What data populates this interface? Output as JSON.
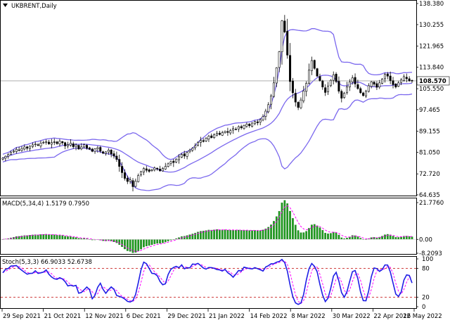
{
  "window": {
    "symbol_title": "UKBRENT,Daily",
    "arrow_icon": "triangle-down-icon"
  },
  "colors": {
    "bullish_body": "#ffffff",
    "bearish_body": "#000000",
    "candle_outline": "#000000",
    "bollinger": "#7b68ee",
    "macd_hist": "#1f9a1f",
    "macd_signal": "#ff00ff",
    "stoch_main": "#1e1ee6",
    "stoch_signal": "#ff00ff",
    "level_line": "#c00000",
    "grid": "#c8c8c8",
    "current_price_line": "#a0a0a0"
  },
  "chart_data": [
    {
      "type": "candlestick",
      "name": "price",
      "title": "UKBRENT,Daily",
      "ylim": [
        64.635,
        138.38
      ],
      "y_ticks": [
        "138.380",
        "130.255",
        "121.965",
        "113.840",
        "105.550",
        "97.465",
        "89.155",
        "81.050",
        "72.720",
        "64.635"
      ],
      "current_price": "108.570",
      "x_dates": [
        "29 Sep 2021",
        "21 Oct 2021",
        "12 Nov 2021",
        "6 Dec 2021",
        "29 Dec 2021",
        "21 Jan 2022",
        "14 Feb 2022",
        "8 Mar 2022",
        "30 Mar 2022",
        "22 Apr 2022",
        "16 May 2022"
      ],
      "close_series": [
        78.8,
        79.5,
        80.2,
        81.1,
        81.5,
        82.2,
        81.8,
        82.5,
        83.1,
        82.6,
        83.4,
        83.9,
        84.2,
        83.7,
        84.6,
        84.9,
        85.1,
        84.3,
        84.8,
        85.0,
        84.4,
        85.3,
        84.7,
        83.5,
        84.0,
        84.6,
        83.2,
        83.9,
        82.3,
        83.1,
        84.0,
        82.6,
        82.2,
        81.4,
        82.4,
        82.8,
        81.5,
        80.7,
        81.2,
        81.9,
        80.4,
        79.6,
        78.3,
        75.6,
        73.2,
        71.0,
        69.8,
        70.4,
        67.8,
        69.9,
        72.1,
        73.6,
        74.8,
        74.1,
        73.7,
        74.3,
        75.0,
        74.6,
        73.9,
        74.8,
        75.6,
        76.6,
        77.4,
        77.1,
        78.4,
        79.3,
        80.2,
        79.6,
        81.0,
        81.8,
        82.6,
        83.6,
        84.9,
        85.6,
        85.2,
        86.4,
        87.2,
        86.7,
        87.8,
        88.4,
        87.9,
        88.6,
        89.1,
        88.7,
        89.4,
        90.2,
        89.9,
        90.9,
        90.5,
        91.4,
        91.9,
        91.3,
        92.3,
        92.9,
        92.4,
        93.5,
        94.8,
        96.9,
        99.4,
        102.8,
        107.8,
        113.6,
        119.8,
        131.7,
        127.4,
        118.5,
        108.3,
        104.0,
        100.4,
        98.3,
        101.2,
        104.7,
        107.6,
        112.7,
        116.4,
        113.4,
        110.4,
        108.7,
        106.2,
        104.1,
        106.6,
        108.8,
        110.9,
        108.3,
        104.6,
        101.9,
        103.8,
        106.3,
        108.1,
        109.7,
        107.4,
        105.6,
        104.0,
        102.9,
        104.6,
        106.7,
        108.2,
        107.3,
        106.1,
        107.8,
        109.3,
        111.1,
        110.4,
        108.7,
        107.1,
        106.2,
        107.8,
        108.9,
        110.2,
        109.4,
        108.6,
        108.57
      ],
      "bollinger_period": "approx. 20"
    },
    {
      "type": "bar",
      "name": "macd",
      "title": "MACD(5,34,4) 1.5179 0.7950",
      "ylim": [
        -8.2093,
        21.776
      ],
      "y_ticks": [
        "21.7760",
        "0.00",
        "-8.2093"
      ],
      "note_series": "MACD histogram and signal are computed from close_series with fast 5, slow 34, signal 4"
    },
    {
      "type": "line",
      "name": "stochastic",
      "title": "Stoch(5,3,3) 66.9033 52.6738",
      "ylim": [
        0,
        100
      ],
      "y_ticks": [
        "100",
        "80",
        "20",
        "0"
      ],
      "levels": [
        80,
        20
      ],
      "note_series": "Stochastic %K(5,3) and %D(3) are computed from close_series"
    }
  ]
}
